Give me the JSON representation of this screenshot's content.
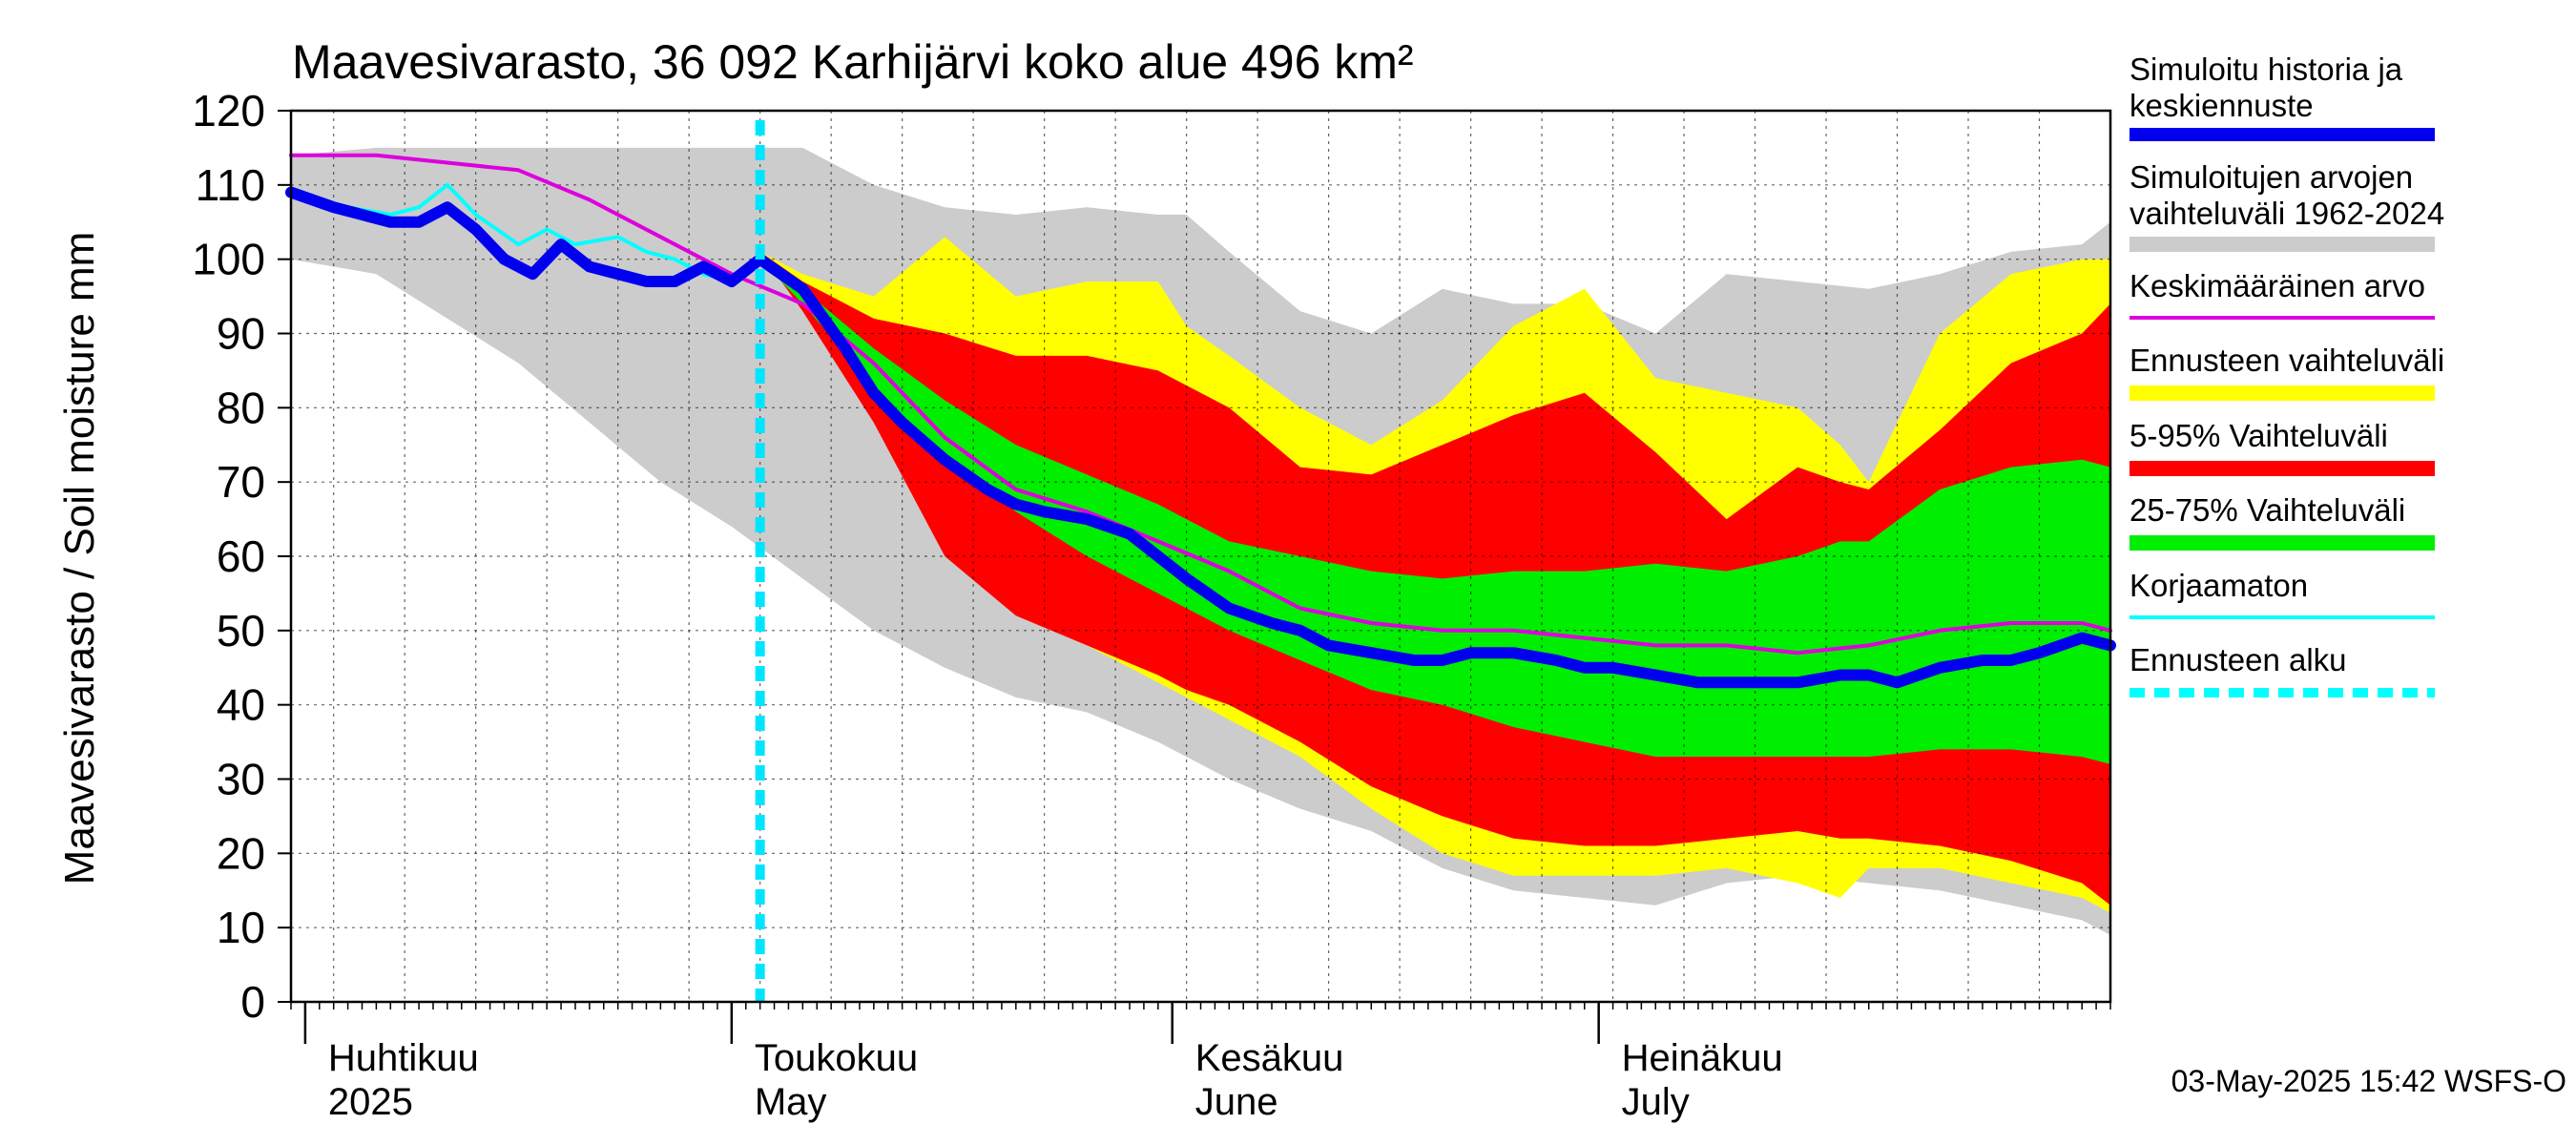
{
  "chart_data": {
    "type": "area",
    "title": "Maavesivarasto, 36 092 Karhijärvi koko alue 496 km²",
    "ylabel": "Maavesivarasto / Soil moisture   mm",
    "ylim": [
      0,
      120
    ],
    "y_ticks": [
      "0",
      "10",
      "20",
      "30",
      "40",
      "50",
      "60",
      "70",
      "80",
      "90",
      "100",
      "110",
      "120"
    ],
    "x_range_days": [
      0,
      127
    ],
    "forecast_start_day": 32,
    "months": [
      {
        "fi": "Huhtikuu",
        "en": "2025",
        "day": 0
      },
      {
        "fi": "Toukokuu",
        "en": "May",
        "day": 30
      },
      {
        "fi": "Kesäkuu",
        "en": "June",
        "day": 61
      },
      {
        "fi": "Heinäkuu",
        "en": "July",
        "day": 91
      }
    ],
    "grid": true,
    "legend_position": "right",
    "legend": [
      {
        "label": "Simuloitu historia ja keskiennuste",
        "color": "#0000ee",
        "style": "thick"
      },
      {
        "label": "Simuloitujen arvojen vaihteluväli 1962-2024",
        "color": "#cccccc",
        "style": "band"
      },
      {
        "label": "Keskimääräinen arvo",
        "color": "#dd00dd",
        "style": "line"
      },
      {
        "label": "Ennusteen vaihteluväli",
        "color": "#ffff00",
        "style": "band"
      },
      {
        "label": "5-95% Vaihteluväli",
        "color": "#ff0000",
        "style": "band"
      },
      {
        "label": "25-75% Vaihteluväli",
        "color": "#00ee00",
        "style": "band"
      },
      {
        "label": "Korjaamaton",
        "color": "#00ffff",
        "style": "line"
      },
      {
        "label": "Ennusteen alku",
        "color": "#00ffff",
        "style": "dashed"
      }
    ],
    "series": {
      "hist_range": {
        "name": "Simuloitujen arvojen vaihteluväli 1962-2024",
        "x": [
          -1,
          5,
          10,
          15,
          20,
          25,
          30,
          35,
          40,
          45,
          50,
          55,
          60,
          62,
          65,
          70,
          75,
          80,
          85,
          90,
          95,
          100,
          105,
          110,
          115,
          120,
          125,
          127
        ],
        "upper": [
          114,
          115,
          115,
          115,
          115,
          115,
          115,
          115,
          110,
          107,
          106,
          107,
          106,
          106,
          101,
          93,
          90,
          96,
          94,
          94,
          90,
          98,
          97,
          96,
          98,
          101,
          102,
          105
        ],
        "lower": [
          100,
          98,
          92,
          86,
          78,
          70,
          64,
          57,
          50,
          45,
          41,
          39,
          35,
          33,
          30,
          26,
          23,
          18,
          15,
          14,
          13,
          16,
          17,
          16,
          15,
          13,
          11,
          9
        ]
      },
      "forecast_range": {
        "name": "Ennusteen vaihteluväli",
        "x": [
          32,
          35,
          40,
          45,
          50,
          55,
          60,
          62,
          65,
          70,
          75,
          80,
          85,
          90,
          95,
          100,
          105,
          108,
          110,
          115,
          120,
          125,
          127
        ],
        "upper": [
          101,
          98,
          95,
          103,
          95,
          97,
          97,
          91,
          87,
          80,
          75,
          81,
          91,
          96,
          84,
          82,
          80,
          75,
          70,
          90,
          98,
          100,
          100
        ],
        "lower": [
          101,
          95,
          80,
          65,
          53,
          48,
          43,
          41,
          38,
          33,
          26,
          20,
          17,
          17,
          17,
          18,
          16,
          14,
          18,
          18,
          16,
          14,
          12
        ]
      },
      "p5_95": {
        "name": "5-95% Vaihteluväli",
        "x": [
          32,
          35,
          40,
          45,
          50,
          55,
          60,
          62,
          65,
          70,
          75,
          80,
          85,
          90,
          95,
          100,
          105,
          108,
          110,
          115,
          120,
          125,
          127
        ],
        "upper": [
          101,
          97,
          92,
          90,
          87,
          87,
          85,
          83,
          80,
          72,
          71,
          75,
          79,
          82,
          74,
          65,
          72,
          70,
          69,
          77,
          86,
          90,
          94
        ],
        "lower": [
          101,
          93,
          78,
          60,
          52,
          48,
          44,
          42,
          40,
          35,
          29,
          25,
          22,
          21,
          21,
          22,
          23,
          22,
          22,
          21,
          19,
          16,
          13
        ]
      },
      "p25_75": {
        "name": "25-75% Vaihteluväli",
        "x": [
          32,
          35,
          40,
          45,
          50,
          55,
          60,
          62,
          65,
          70,
          75,
          80,
          85,
          90,
          95,
          100,
          105,
          108,
          110,
          115,
          120,
          125,
          127
        ],
        "upper": [
          100,
          96,
          88,
          81,
          75,
          71,
          67,
          65,
          62,
          60,
          58,
          57,
          58,
          58,
          59,
          58,
          60,
          62,
          62,
          69,
          72,
          73,
          72
        ],
        "lower": [
          100,
          94,
          83,
          73,
          66,
          60,
          55,
          53,
          50,
          46,
          42,
          40,
          37,
          35,
          33,
          33,
          33,
          33,
          33,
          34,
          34,
          33,
          32
        ]
      },
      "mean": {
        "name": "Keskimääräinen arvo",
        "x": [
          -1,
          5,
          10,
          15,
          20,
          25,
          30,
          35,
          40,
          45,
          50,
          55,
          60,
          65,
          70,
          75,
          80,
          85,
          90,
          95,
          100,
          105,
          110,
          115,
          120,
          125,
          127
        ],
        "values": [
          114,
          114,
          113,
          112,
          108,
          103,
          98,
          94,
          86,
          76,
          69,
          66,
          62,
          58,
          53,
          51,
          50,
          50,
          49,
          48,
          48,
          47,
          48,
          50,
          51,
          51,
          50
        ]
      },
      "uncorrected": {
        "name": "Korjaamaton",
        "x": [
          -1,
          3,
          6,
          8,
          10,
          12,
          15,
          17,
          19,
          22,
          24,
          26,
          28,
          30,
          32
        ],
        "values": [
          109,
          107,
          106,
          107,
          110,
          106,
          102,
          104,
          102,
          103,
          101,
          100,
          98,
          97,
          100
        ]
      },
      "median": {
        "name": "Simuloitu historia ja keskiennuste",
        "x": [
          -1,
          2,
          4,
          6,
          8,
          10,
          12,
          14,
          16,
          18,
          20,
          22,
          24,
          26,
          28,
          30,
          32,
          35,
          38,
          40,
          42,
          45,
          48,
          50,
          52,
          55,
          58,
          60,
          62,
          65,
          68,
          70,
          72,
          75,
          78,
          80,
          82,
          85,
          88,
          90,
          92,
          95,
          98,
          100,
          102,
          105,
          108,
          110,
          112,
          115,
          118,
          120,
          122,
          125,
          127
        ],
        "values": [
          109,
          107,
          106,
          105,
          105,
          107,
          104,
          100,
          98,
          102,
          99,
          98,
          97,
          97,
          99,
          97,
          100,
          96,
          88,
          82,
          78,
          73,
          69,
          67,
          66,
          65,
          63,
          60,
          57,
          53,
          51,
          50,
          48,
          47,
          46,
          46,
          47,
          47,
          46,
          45,
          45,
          44,
          43,
          43,
          43,
          43,
          44,
          44,
          43,
          45,
          46,
          46,
          47,
          49,
          48
        ]
      }
    },
    "footer": "03-May-2025 15:42 WSFS-O"
  }
}
